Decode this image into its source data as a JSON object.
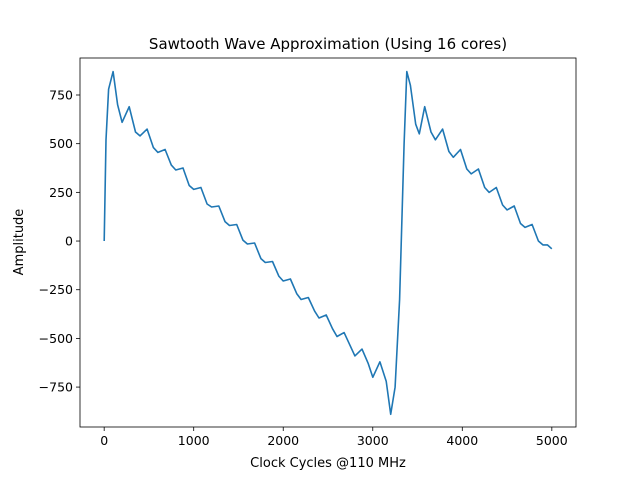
{
  "chart_data": {
    "type": "line",
    "title": "Sawtooth Wave Approximation (Using 16 cores)",
    "xlabel": "Clock Cycles @110 MHz",
    "ylabel": "Amplitude",
    "xlim": [
      -270,
      5270
    ],
    "ylim": [
      -955,
      940
    ],
    "xticks": [
      0,
      1000,
      2000,
      3000,
      4000,
      5000
    ],
    "xtick_labels": [
      "0",
      "1000",
      "2000",
      "3000",
      "4000",
      "5000"
    ],
    "yticks": [
      -750,
      -500,
      -250,
      0,
      250,
      500,
      750
    ],
    "ytick_labels": [
      "−750",
      "−500",
      "−250",
      "0",
      "250",
      "500",
      "750"
    ],
    "grid": false,
    "legend": "none",
    "series": [
      {
        "color": "#1f77b4",
        "x": [
          0,
          20,
          50,
          100,
          150,
          200,
          280,
          350,
          400,
          480,
          550,
          600,
          680,
          750,
          800,
          880,
          950,
          1000,
          1080,
          1150,
          1200,
          1280,
          1350,
          1400,
          1480,
          1550,
          1600,
          1680,
          1750,
          1800,
          1880,
          1950,
          2000,
          2080,
          2150,
          2200,
          2280,
          2350,
          2400,
          2480,
          2550,
          2600,
          2680,
          2750,
          2800,
          2880,
          2950,
          3000,
          3080,
          3150,
          3200,
          3250,
          3300,
          3350,
          3380,
          3420,
          3480,
          3520,
          3580,
          3650,
          3700,
          3780,
          3850,
          3900,
          3980,
          4050,
          4100,
          4180,
          4250,
          4300,
          4380,
          4450,
          4500,
          4580,
          4650,
          4700,
          4780,
          4850,
          4900,
          4950,
          5000
        ],
        "y": [
          0,
          520,
          780,
          870,
          700,
          610,
          690,
          560,
          540,
          575,
          480,
          455,
          470,
          390,
          365,
          375,
          285,
          265,
          275,
          190,
          175,
          180,
          100,
          80,
          85,
          5,
          -15,
          -10,
          -90,
          -110,
          -105,
          -180,
          -205,
          -195,
          -270,
          -300,
          -290,
          -360,
          -395,
          -380,
          -450,
          -490,
          -470,
          -540,
          -590,
          -555,
          -630,
          -700,
          -620,
          -720,
          -890,
          -750,
          -300,
          500,
          870,
          800,
          600,
          550,
          690,
          560,
          520,
          575,
          460,
          430,
          470,
          370,
          345,
          370,
          275,
          250,
          275,
          185,
          160,
          180,
          90,
          70,
          85,
          0,
          -20,
          -20,
          -40
        ]
      }
    ]
  }
}
